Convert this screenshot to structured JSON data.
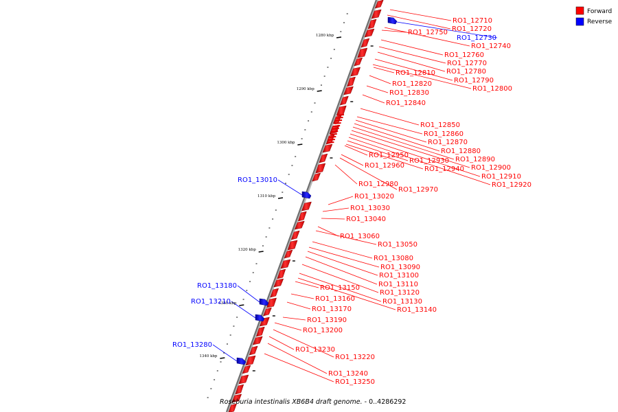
{
  "legend": {
    "items": [
      {
        "label": "Forward",
        "color": "#ff0000"
      },
      {
        "label": "Reverse",
        "color": "#0000ff"
      }
    ]
  },
  "caption": {
    "organism": "Roseburia intestinalis XB6B4 draft genome.",
    "range": " - 0..4286292"
  },
  "ticks": [
    "1280 kbp",
    "1290 kbp",
    "1300 kbp",
    "1310 kbp",
    "1320 kbp",
    "1330 kbp",
    "1340 kbp"
  ],
  "genes": [
    {
      "name": "RO1_12710",
      "strand": "forward"
    },
    {
      "name": "RO1_12720",
      "strand": "forward"
    },
    {
      "name": "RO1_12730",
      "strand": "reverse"
    },
    {
      "name": "RO1_12740",
      "strand": "forward"
    },
    {
      "name": "RO1_12750",
      "strand": "forward"
    },
    {
      "name": "RO1_12760",
      "strand": "forward"
    },
    {
      "name": "RO1_12770",
      "strand": "forward"
    },
    {
      "name": "RO1_12780",
      "strand": "forward"
    },
    {
      "name": "RO1_12790",
      "strand": "forward"
    },
    {
      "name": "RO1_12800",
      "strand": "forward"
    },
    {
      "name": "RO1_12810",
      "strand": "forward"
    },
    {
      "name": "RO1_12820",
      "strand": "forward"
    },
    {
      "name": "RO1_12830",
      "strand": "forward"
    },
    {
      "name": "RO1_12840",
      "strand": "forward"
    },
    {
      "name": "RO1_12850",
      "strand": "forward"
    },
    {
      "name": "RO1_12860",
      "strand": "forward"
    },
    {
      "name": "RO1_12870",
      "strand": "forward"
    },
    {
      "name": "RO1_12880",
      "strand": "forward"
    },
    {
      "name": "RO1_12890",
      "strand": "forward"
    },
    {
      "name": "RO1_12900",
      "strand": "forward"
    },
    {
      "name": "RO1_12910",
      "strand": "forward"
    },
    {
      "name": "RO1_12920",
      "strand": "forward"
    },
    {
      "name": "RO1_12930",
      "strand": "forward"
    },
    {
      "name": "RO1_12940",
      "strand": "forward"
    },
    {
      "name": "RO1_12950",
      "strand": "forward"
    },
    {
      "name": "RO1_12960",
      "strand": "forward"
    },
    {
      "name": "RO1_12970",
      "strand": "forward"
    },
    {
      "name": "RO1_12980",
      "strand": "forward"
    },
    {
      "name": "RO1_13010",
      "strand": "reverse"
    },
    {
      "name": "RO1_13020",
      "strand": "forward"
    },
    {
      "name": "RO1_13030",
      "strand": "forward"
    },
    {
      "name": "RO1_13040",
      "strand": "forward"
    },
    {
      "name": "RO1_13060",
      "strand": "forward"
    },
    {
      "name": "RO1_13050",
      "strand": "forward"
    },
    {
      "name": "RO1_13080",
      "strand": "forward"
    },
    {
      "name": "RO1_13090",
      "strand": "forward"
    },
    {
      "name": "RO1_13100",
      "strand": "forward"
    },
    {
      "name": "RO1_13110",
      "strand": "forward"
    },
    {
      "name": "RO1_13120",
      "strand": "forward"
    },
    {
      "name": "RO1_13130",
      "strand": "forward"
    },
    {
      "name": "RO1_13140",
      "strand": "forward"
    },
    {
      "name": "RO1_13150",
      "strand": "forward"
    },
    {
      "name": "RO1_13160",
      "strand": "forward"
    },
    {
      "name": "RO1_13170",
      "strand": "forward"
    },
    {
      "name": "RO1_13180",
      "strand": "reverse"
    },
    {
      "name": "RO1_13190",
      "strand": "forward"
    },
    {
      "name": "RO1_13200",
      "strand": "forward"
    },
    {
      "name": "RO1_13210",
      "strand": "reverse"
    },
    {
      "name": "RO1_13220",
      "strand": "forward"
    },
    {
      "name": "RO1_13230",
      "strand": "forward"
    },
    {
      "name": "RO1_13240",
      "strand": "forward"
    },
    {
      "name": "RO1_13250",
      "strand": "forward"
    },
    {
      "name": "RO1_13280",
      "strand": "reverse"
    }
  ]
}
